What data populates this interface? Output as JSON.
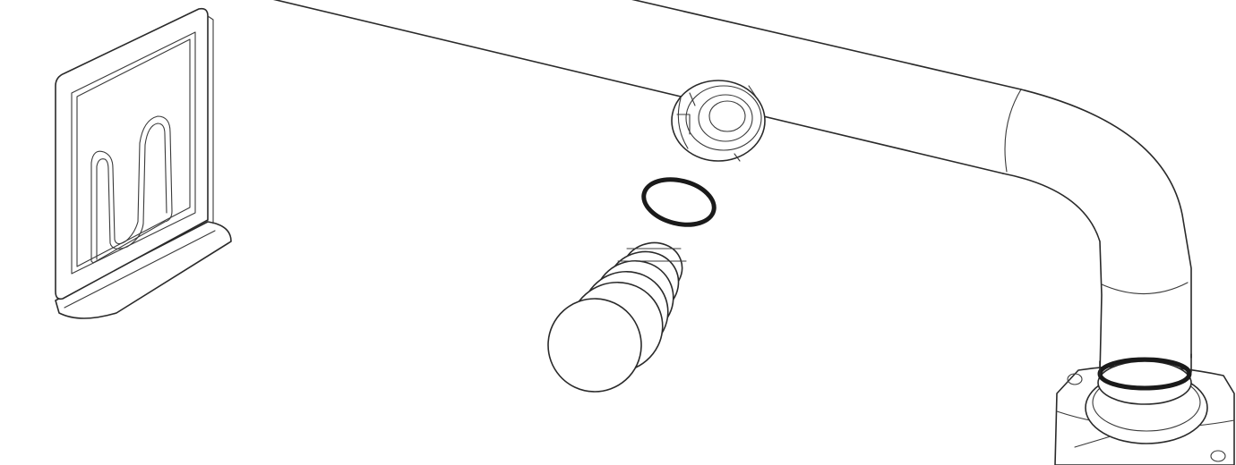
{
  "figure": {
    "kind": "exploded assembly line drawing",
    "background_color": "#ffffff",
    "line_color": "#2a2a2a"
  },
  "parts": [
    {
      "id": "wall-plate",
      "icon": "mounting-bracket-icon"
    },
    {
      "id": "tube",
      "icon": "bent-tube-icon"
    },
    {
      "id": "nut",
      "icon": "split-nut-icon"
    },
    {
      "id": "o-ring",
      "icon": "o-ring-icon"
    },
    {
      "id": "plug",
      "icon": "threaded-plug-icon"
    },
    {
      "id": "flange",
      "icon": "flange-base-icon"
    }
  ]
}
